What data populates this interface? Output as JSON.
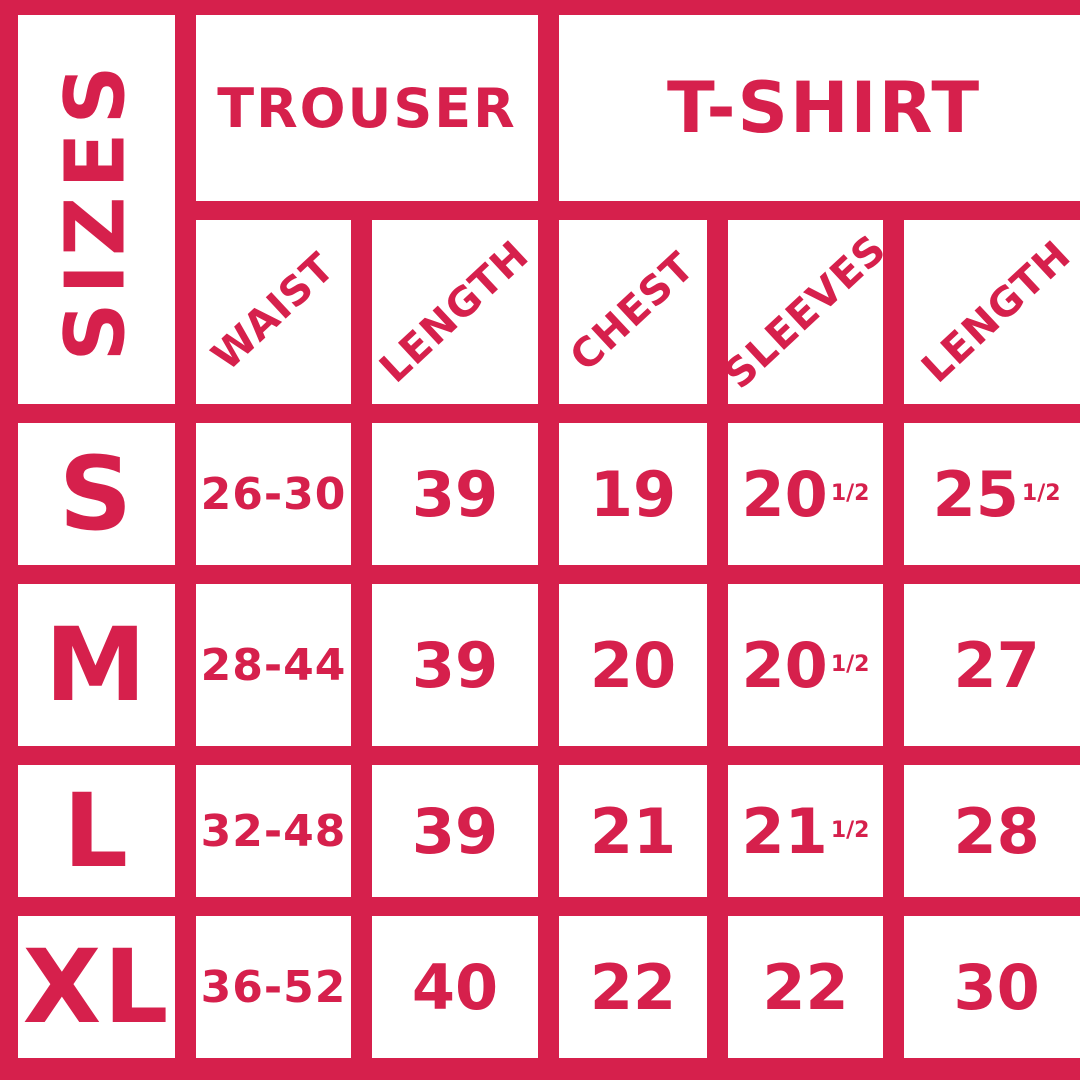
{
  "colors": {
    "accent": "#D6204C",
    "cell_background": "#FFFFFF"
  },
  "chart_data": {
    "type": "table",
    "title": "SIZES",
    "groups": [
      {
        "label": "TROUSER",
        "columns": [
          "WAIST",
          "LENGTH"
        ]
      },
      {
        "label": "T-SHIRT",
        "columns": [
          "CHEST",
          "SLEEVES",
          "LENGTH"
        ]
      }
    ],
    "rows": [
      {
        "size": "S",
        "cells": [
          {
            "main": "26-30",
            "frac": ""
          },
          {
            "main": "39",
            "frac": ""
          },
          {
            "main": "19",
            "frac": ""
          },
          {
            "main": "20",
            "frac": "1/2"
          },
          {
            "main": "25",
            "frac": "1/2"
          }
        ]
      },
      {
        "size": "M",
        "cells": [
          {
            "main": "28-44",
            "frac": ""
          },
          {
            "main": "39",
            "frac": ""
          },
          {
            "main": "20",
            "frac": ""
          },
          {
            "main": "20",
            "frac": "1/2"
          },
          {
            "main": "27",
            "frac": ""
          }
        ]
      },
      {
        "size": "L",
        "cells": [
          {
            "main": "32-48",
            "frac": ""
          },
          {
            "main": "39",
            "frac": ""
          },
          {
            "main": "21",
            "frac": ""
          },
          {
            "main": "21",
            "frac": "1/2"
          },
          {
            "main": "28",
            "frac": ""
          }
        ]
      },
      {
        "size": "XL",
        "cells": [
          {
            "main": "36-52",
            "frac": ""
          },
          {
            "main": "40",
            "frac": ""
          },
          {
            "main": "22",
            "frac": ""
          },
          {
            "main": "22",
            "frac": ""
          },
          {
            "main": "30",
            "frac": ""
          }
        ]
      }
    ]
  }
}
